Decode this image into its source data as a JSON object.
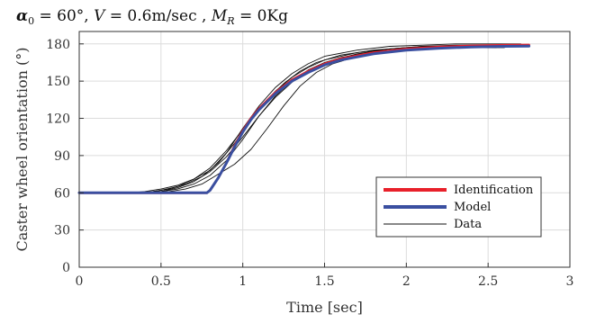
{
  "chart_data": {
    "type": "line",
    "title": "α0 = 60°, V = 0.6m/sec , MR = 0Kg",
    "title_parts": {
      "alpha": "α",
      "alpha_sub": "0",
      "part1": " = 60°, ",
      "V": "V",
      "part2": " = 0.6m/sec , ",
      "M": "M",
      "M_sub": "R",
      "part3": " = 0Kg"
    },
    "xlabel": "Time [sec]",
    "ylabel": "Caster wheel orientation (°)",
    "xlim": [
      0,
      3
    ],
    "ylim": [
      0,
      190
    ],
    "xticks": [
      0,
      0.5,
      1,
      1.5,
      2,
      2.5,
      3
    ],
    "xtick_labels": [
      "0",
      "0.5",
      "1",
      "1.5",
      "2",
      "2.5",
      "3"
    ],
    "yticks": [
      0,
      30,
      60,
      90,
      120,
      150,
      180
    ],
    "ytick_labels": [
      "0",
      "30",
      "60",
      "90",
      "120",
      "150",
      "180"
    ],
    "grid": true,
    "legend_position": "bottom-right",
    "legend": [
      {
        "label": "Identification",
        "color": "#e8202a",
        "width": 4
      },
      {
        "label": "Model",
        "color": "#3a4fa0",
        "width": 4
      },
      {
        "label": "Data",
        "color": "#111111",
        "width": 1
      }
    ],
    "series": [
      {
        "name": "Data",
        "color": "#111111",
        "width": 0.9,
        "x": [
          0,
          0.3,
          0.4,
          0.5,
          0.6,
          0.7,
          0.8,
          0.9,
          1.0,
          1.1,
          1.2,
          1.3,
          1.4,
          1.5,
          1.7,
          1.9,
          2.1,
          2.3,
          2.5,
          2.7
        ],
        "y": [
          60,
          60,
          61,
          63,
          66,
          71,
          78,
          92,
          112,
          130,
          145,
          156,
          164,
          170,
          175,
          178,
          179,
          180,
          180,
          180
        ]
      },
      {
        "name": "Data",
        "color": "#111111",
        "width": 0.9,
        "x": [
          0,
          0.35,
          0.45,
          0.55,
          0.65,
          0.75,
          0.85,
          0.95,
          1.05,
          1.15,
          1.25,
          1.35,
          1.45,
          1.6,
          1.8,
          2.0,
          2.2,
          2.4,
          2.5
        ],
        "y": [
          60,
          60,
          61,
          63,
          67,
          73,
          84,
          100,
          119,
          135,
          148,
          158,
          165,
          171,
          175,
          177,
          178,
          178,
          178
        ]
      },
      {
        "name": "Data",
        "color": "#111111",
        "width": 0.9,
        "x": [
          0,
          0.4,
          0.5,
          0.6,
          0.7,
          0.8,
          0.9,
          1.0,
          1.1,
          1.2,
          1.3,
          1.4,
          1.5,
          1.6,
          1.8,
          2.0,
          2.2,
          2.4,
          2.55
        ],
        "y": [
          60,
          60,
          61,
          63,
          67,
          74,
          86,
          103,
          122,
          138,
          150,
          159,
          165,
          169,
          174,
          176,
          177,
          177,
          177
        ]
      },
      {
        "name": "Data",
        "color": "#111111",
        "width": 0.9,
        "x": [
          0,
          0.4,
          0.5,
          0.6,
          0.7,
          0.8,
          0.9,
          1.0,
          1.1,
          1.2,
          1.3,
          1.4,
          1.5,
          1.7,
          1.9,
          2.1,
          2.3,
          2.5
        ],
        "y": [
          60,
          60,
          61,
          64,
          69,
          77,
          89,
          105,
          122,
          137,
          149,
          158,
          165,
          172,
          176,
          178,
          178,
          178
        ]
      },
      {
        "name": "Data",
        "color": "#111111",
        "width": 0.9,
        "x": [
          0,
          0.45,
          0.55,
          0.65,
          0.75,
          0.85,
          0.95,
          1.05,
          1.15,
          1.25,
          1.35,
          1.45,
          1.55,
          1.7,
          1.9,
          2.1,
          2.3,
          2.5,
          2.6
        ],
        "y": [
          60,
          60,
          61,
          63,
          67,
          75,
          83,
          95,
          112,
          130,
          146,
          157,
          164,
          170,
          174,
          176,
          177,
          177,
          177
        ]
      },
      {
        "name": "Data",
        "color": "#111111",
        "width": 0.9,
        "x": [
          0,
          0.4,
          0.5,
          0.6,
          0.7,
          0.8,
          0.9,
          1.0,
          1.1,
          1.2,
          1.3,
          1.4,
          1.5,
          1.7,
          1.9,
          2.1,
          2.3,
          2.5,
          2.65
        ],
        "y": [
          60,
          60,
          62,
          65,
          71,
          80,
          94,
          111,
          128,
          142,
          153,
          161,
          167,
          173,
          176,
          178,
          179,
          179,
          179
        ]
      },
      {
        "name": "Identification",
        "color": "#e8202a",
        "width": 2.6,
        "x": [
          0,
          0.78,
          0.8,
          0.85,
          0.9,
          0.95,
          1.0,
          1.05,
          1.1,
          1.2,
          1.3,
          1.4,
          1.5,
          1.6,
          1.8,
          2.0,
          2.2,
          2.4,
          2.6,
          2.75
        ],
        "y": [
          60,
          60,
          62,
          72,
          84,
          98,
          110,
          120,
          128,
          141,
          151,
          158,
          164,
          168,
          173,
          176,
          177.5,
          178.5,
          179,
          179.2
        ]
      },
      {
        "name": "Model",
        "color": "#3a4fa0",
        "width": 3.0,
        "x": [
          0,
          0.78,
          0.8,
          0.85,
          0.9,
          0.95,
          1.0,
          1.05,
          1.1,
          1.2,
          1.3,
          1.4,
          1.5,
          1.6,
          1.8,
          2.0,
          2.2,
          2.4,
          2.6,
          2.75
        ],
        "y": [
          60,
          60,
          62,
          72,
          84,
          97,
          109,
          119,
          127,
          140,
          150,
          157,
          163,
          167,
          172,
          175,
          176.5,
          177.5,
          178,
          178.2
        ]
      }
    ]
  }
}
